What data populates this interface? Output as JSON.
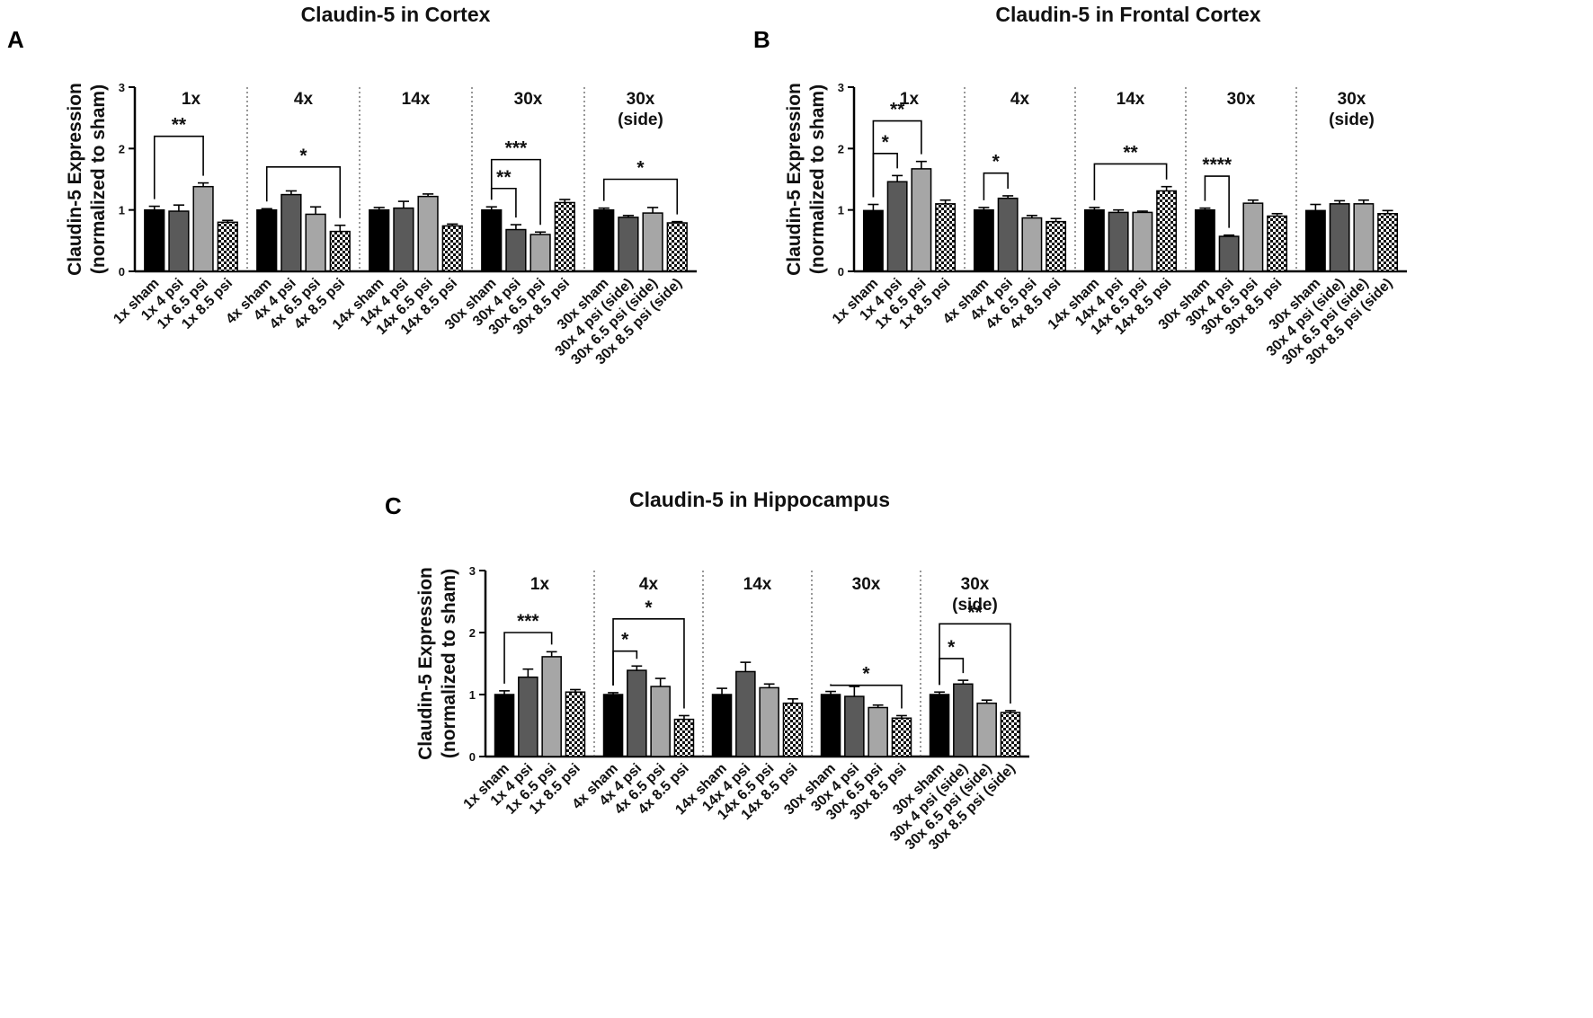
{
  "chart_data": [
    {
      "type": "bar",
      "panel": "A",
      "title": "Claudin-5 in Cortex",
      "ylabel": [
        "Claudin-5 Expression",
        "(normalized to sham)"
      ],
      "ylim": [
        0,
        3
      ],
      "yticks": [
        0,
        1,
        2,
        3
      ],
      "groups": [
        {
          "label": [
            "1x"
          ],
          "categories": [
            "1x sham",
            "1x 4 psi",
            "1x 6.5 psi",
            "1x 8.5 psi"
          ],
          "values": [
            1.0,
            0.98,
            1.38,
            0.8
          ],
          "errors": [
            0.06,
            0.1,
            0.06,
            0.03
          ],
          "significance": [
            {
              "from": 0,
              "to": 2,
              "label": "**",
              "level": 2.2
            }
          ]
        },
        {
          "label": [
            "4x"
          ],
          "categories": [
            "4x sham",
            "4x 4 psi",
            "4x 6.5 psi",
            "4x 8.5 psi"
          ],
          "values": [
            1.0,
            1.25,
            0.93,
            0.65
          ],
          "errors": [
            0.02,
            0.06,
            0.12,
            0.1
          ],
          "significance": [
            {
              "from": 0,
              "to": 3,
              "label": "*",
              "level": 1.7
            }
          ]
        },
        {
          "label": [
            "14x"
          ],
          "categories": [
            "14x sham",
            "14x 4 psi",
            "14x 6.5 psi",
            "14x 8.5 psi"
          ],
          "values": [
            1.0,
            1.03,
            1.22,
            0.74
          ],
          "errors": [
            0.04,
            0.11,
            0.04,
            0.03
          ],
          "significance": []
        },
        {
          "label": [
            "30x"
          ],
          "categories": [
            "30x sham",
            "30x 4 psi",
            "30x 6.5 psi",
            "30x 8.5 psi"
          ],
          "values": [
            1.0,
            0.68,
            0.6,
            1.12
          ],
          "errors": [
            0.05,
            0.08,
            0.04,
            0.05
          ],
          "significance": [
            {
              "from": 0,
              "to": 1,
              "label": "**",
              "level": 1.35
            },
            {
              "from": 0,
              "to": 2,
              "label": "***",
              "level": 1.82
            }
          ]
        },
        {
          "label": [
            "30x",
            "(side)"
          ],
          "categories": [
            "30x sham",
            "30x 4 psi (side)",
            "30x 6.5 psi (side)",
            "30x 8.5 psi (side)"
          ],
          "values": [
            1.0,
            0.88,
            0.95,
            0.79
          ],
          "errors": [
            0.03,
            0.03,
            0.09,
            0.02
          ],
          "significance": [
            {
              "from": 0,
              "to": 3,
              "label": "*",
              "level": 1.5
            }
          ]
        }
      ]
    },
    {
      "type": "bar",
      "panel": "B",
      "title": "Claudin-5 in Frontal Cortex",
      "ylabel": [
        "Claudin-5 Expression",
        "(normalized to sham)"
      ],
      "ylim": [
        0,
        3
      ],
      "yticks": [
        0,
        1,
        2,
        3
      ],
      "groups": [
        {
          "label": [
            "1x"
          ],
          "categories": [
            "1x sham",
            "1x 4 psi",
            "1x 6.5 psi",
            "1x 8.5 psi"
          ],
          "values": [
            0.99,
            1.46,
            1.67,
            1.1
          ],
          "errors": [
            0.1,
            0.1,
            0.12,
            0.06
          ],
          "significance": [
            {
              "from": 0,
              "to": 1,
              "label": "*",
              "level": 1.92
            },
            {
              "from": 0,
              "to": 2,
              "label": "**",
              "level": 2.45
            }
          ]
        },
        {
          "label": [
            "4x"
          ],
          "categories": [
            "4x sham",
            "4x 4 psi",
            "4x 6.5 psi",
            "4x 8.5 psi"
          ],
          "values": [
            1.0,
            1.19,
            0.87,
            0.81
          ],
          "errors": [
            0.04,
            0.04,
            0.04,
            0.05
          ],
          "significance": [
            {
              "from": 0,
              "to": 1,
              "label": "*",
              "level": 1.6
            }
          ]
        },
        {
          "label": [
            "14x"
          ],
          "categories": [
            "14x sham",
            "14x 4 psi",
            "14x 6.5 psi",
            "14x 8.5 psi"
          ],
          "values": [
            1.0,
            0.96,
            0.96,
            1.31
          ],
          "errors": [
            0.04,
            0.04,
            0.02,
            0.07
          ],
          "significance": [
            {
              "from": 0,
              "to": 3,
              "label": "**",
              "level": 1.75
            }
          ]
        },
        {
          "label": [
            "30x"
          ],
          "categories": [
            "30x sham",
            "30x 4 psi",
            "30x 6.5 psi",
            "30x 8.5 psi"
          ],
          "values": [
            1.0,
            0.57,
            1.11,
            0.9
          ],
          "errors": [
            0.03,
            0.02,
            0.05,
            0.04
          ],
          "significance": [
            {
              "from": 0,
              "to": 1,
              "label": "****",
              "level": 1.55
            }
          ]
        },
        {
          "label": [
            "30x",
            "(side)"
          ],
          "categories": [
            "30x sham",
            "30x 4 psi (side)",
            "30x 6.5 psi (side)",
            "30x 8.5 psi (side)"
          ],
          "values": [
            0.99,
            1.1,
            1.1,
            0.94
          ],
          "errors": [
            0.1,
            0.05,
            0.06,
            0.05
          ],
          "significance": []
        }
      ]
    },
    {
      "type": "bar",
      "panel": "C",
      "title": "Claudin-5 in Hippocampus",
      "ylabel": [
        "Claudin-5 Expression",
        "(normalized to sham)"
      ],
      "ylim": [
        0,
        3
      ],
      "yticks": [
        0,
        1,
        2,
        3
      ],
      "groups": [
        {
          "label": [
            "1x"
          ],
          "categories": [
            "1x sham",
            "1x 4 psi",
            "1x 6.5 psi",
            "1x 8.5 psi"
          ],
          "values": [
            1.0,
            1.28,
            1.61,
            1.04
          ],
          "errors": [
            0.06,
            0.13,
            0.08,
            0.04
          ],
          "significance": [
            {
              "from": 0,
              "to": 2,
              "label": "***",
              "level": 2.0
            }
          ]
        },
        {
          "label": [
            "4x"
          ],
          "categories": [
            "4x sham",
            "4x 4 psi",
            "4x 6.5 psi",
            "4x 8.5 psi"
          ],
          "values": [
            1.0,
            1.39,
            1.13,
            0.6
          ],
          "errors": [
            0.03,
            0.07,
            0.13,
            0.06
          ],
          "significance": [
            {
              "from": 0,
              "to": 1,
              "label": "*",
              "level": 1.7
            },
            {
              "from": 0,
              "to": 3,
              "label": "*",
              "level": 2.22
            }
          ]
        },
        {
          "label": [
            "14x"
          ],
          "categories": [
            "14x sham",
            "14x 4 psi",
            "14x 6.5 psi",
            "14x 8.5 psi"
          ],
          "values": [
            1.0,
            1.37,
            1.11,
            0.86
          ],
          "errors": [
            0.1,
            0.15,
            0.06,
            0.07
          ],
          "significance": []
        },
        {
          "label": [
            "30x"
          ],
          "categories": [
            "30x sham",
            "30x 4 psi",
            "30x 6.5 psi",
            "30x 8.5 psi"
          ],
          "values": [
            1.0,
            0.97,
            0.79,
            0.62
          ],
          "errors": [
            0.05,
            0.16,
            0.04,
            0.04
          ],
          "significance": [
            {
              "from": 0,
              "to": 3,
              "label": "*",
              "level": 1.15
            }
          ]
        },
        {
          "label": [
            "30x",
            "(side)"
          ],
          "categories": [
            "30x sham",
            "30x 4 psi (side)",
            "30x 6.5 psi (side)",
            "30x 8.5 psi (side)"
          ],
          "values": [
            1.0,
            1.17,
            0.86,
            0.71
          ],
          "errors": [
            0.04,
            0.06,
            0.05,
            0.03
          ],
          "significance": [
            {
              "from": 0,
              "to": 1,
              "label": "*",
              "level": 1.58
            },
            {
              "from": 0,
              "to": 3,
              "label": "**",
              "level": 2.14
            }
          ]
        }
      ]
    }
  ]
}
